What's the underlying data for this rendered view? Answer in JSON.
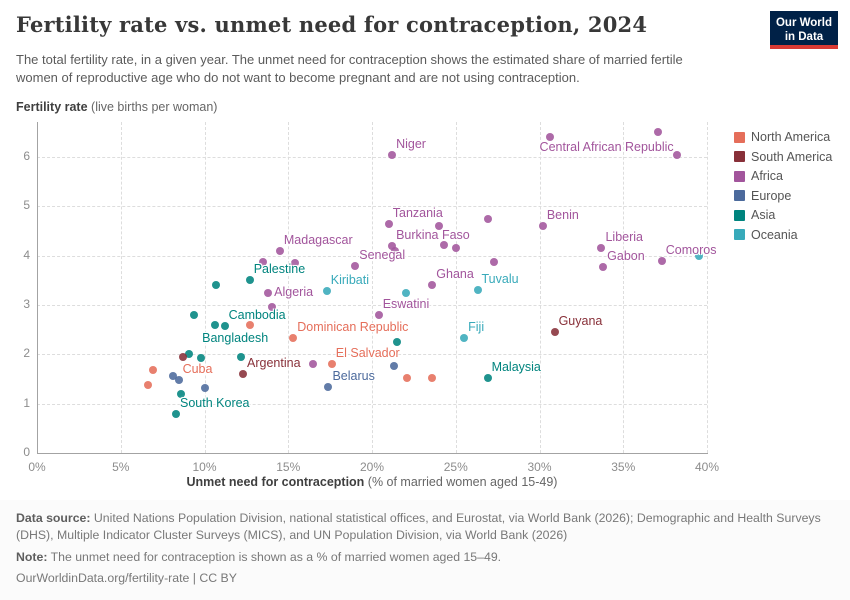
{
  "header": {
    "title": "Fertility rate vs. unmet need for contraception, 2024",
    "subtitle": "The total fertility rate, in a given year. The unmet need for contraception shows the estimated share of married fertile women of reproductive age who do not want to become pregnant and are not using contraception.",
    "logo": {
      "line1": "Our World",
      "line2": "in Data",
      "bg": "#002147",
      "accent": "#d93a34"
    }
  },
  "chart_data": {
    "type": "scatter",
    "title": "Fertility rate vs. unmet need for contraception, 2024",
    "x_axis": {
      "title_bold": "Unmet need for contraception",
      "title_rest": " (% of married women aged 15-49)",
      "ticks": [
        "0%",
        "5%",
        "10%",
        "15%",
        "20%",
        "25%",
        "30%",
        "35%",
        "40%"
      ],
      "range": [
        0,
        40
      ],
      "grid": true
    },
    "y_axis": {
      "title_bold": "Fertility rate",
      "title_rest": " (live births per woman)",
      "ticks": [
        0,
        1,
        2,
        3,
        4,
        5,
        6
      ],
      "range": [
        0,
        6.7
      ],
      "grid": true
    },
    "legend_position": "right",
    "legend": [
      {
        "label": "North America",
        "color": "#e56e5a"
      },
      {
        "label": "South America",
        "color": "#883039"
      },
      {
        "label": "Africa",
        "color": "#a2559c"
      },
      {
        "label": "Europe",
        "color": "#4c6a9c"
      },
      {
        "label": "Asia",
        "color": "#00847e"
      },
      {
        "label": "Oceania",
        "color": "#38aaba"
      }
    ],
    "series": [
      {
        "name": "Africa",
        "color": "#a2559c",
        "points": [
          {
            "x": 21.2,
            "y": 6.05,
            "label": "Niger",
            "labelPos": "ar"
          },
          {
            "x": 30.6,
            "y": 6.4,
            "label": "Central African Republic",
            "labelPos": "br"
          },
          {
            "x": 37.1,
            "y": 6.5
          },
          {
            "x": 38.2,
            "y": 6.05
          },
          {
            "x": 21.0,
            "y": 4.65,
            "label": "Tanzania",
            "labelPos": "ar"
          },
          {
            "x": 24.0,
            "y": 4.6
          },
          {
            "x": 26.9,
            "y": 4.75
          },
          {
            "x": 30.2,
            "y": 4.6,
            "label": "Benin",
            "labelPos": "ar"
          },
          {
            "x": 21.2,
            "y": 4.2,
            "label": "Burkina Faso",
            "labelPos": "ar"
          },
          {
            "x": 21.4,
            "y": 4.1
          },
          {
            "x": 24.3,
            "y": 4.22
          },
          {
            "x": 25.0,
            "y": 4.15
          },
          {
            "x": 33.7,
            "y": 4.15,
            "label": "Liberia",
            "labelPos": "ar"
          },
          {
            "x": 33.8,
            "y": 3.77,
            "label": "Gabon",
            "labelPos": "ar"
          },
          {
            "x": 37.3,
            "y": 3.9,
            "label": "Comoros",
            "labelPos": "ar"
          },
          {
            "x": 14.5,
            "y": 4.1,
            "label": "Madagascar",
            "labelPos": "ar"
          },
          {
            "x": 13.5,
            "y": 3.87
          },
          {
            "x": 15.4,
            "y": 3.85
          },
          {
            "x": 19.0,
            "y": 3.8,
            "label": "Senegal",
            "labelPos": "ar"
          },
          {
            "x": 27.3,
            "y": 3.87
          },
          {
            "x": 23.6,
            "y": 3.4,
            "label": "Ghana",
            "labelPos": "ar"
          },
          {
            "x": 13.8,
            "y": 3.25,
            "label": "Algeria",
            "labelPos": "r"
          },
          {
            "x": 14.0,
            "y": 2.95
          },
          {
            "x": 20.4,
            "y": 2.8,
            "label": "Eswatini",
            "labelPos": "ar"
          },
          {
            "x": 16.5,
            "y": 1.81
          }
        ]
      },
      {
        "name": "Asia",
        "color": "#00847e",
        "points": [
          {
            "x": 12.7,
            "y": 3.5,
            "label": "Palestine",
            "labelPos": "ar"
          },
          {
            "x": 10.7,
            "y": 3.4
          },
          {
            "x": 9.4,
            "y": 2.8
          },
          {
            "x": 11.2,
            "y": 2.58,
            "label": "Cambodia",
            "labelPos": "ar"
          },
          {
            "x": 10.6,
            "y": 2.6
          },
          {
            "x": 9.8,
            "y": 1.93,
            "label": "Bangladesh",
            "labelPos": "aa"
          },
          {
            "x": 9.1,
            "y": 2.0
          },
          {
            "x": 12.2,
            "y": 1.95
          },
          {
            "x": 8.6,
            "y": 1.2
          },
          {
            "x": 8.3,
            "y": 0.8,
            "label": "South Korea",
            "labelPos": "ar"
          },
          {
            "x": 21.5,
            "y": 2.25
          },
          {
            "x": 26.9,
            "y": 1.52,
            "label": "Malaysia",
            "labelPos": "ar"
          }
        ]
      },
      {
        "name": "North America",
        "color": "#e56e5a",
        "points": [
          {
            "x": 12.7,
            "y": 2.6
          },
          {
            "x": 15.3,
            "y": 2.33,
            "label": "Dominican Republic",
            "labelPos": "ar"
          },
          {
            "x": 6.9,
            "y": 1.68,
            "label": "Cuba",
            "labelPos": "rr"
          },
          {
            "x": 6.6,
            "y": 1.38
          },
          {
            "x": 17.6,
            "y": 1.81,
            "label": "El Salvador",
            "labelPos": "ar"
          },
          {
            "x": 22.1,
            "y": 1.52
          },
          {
            "x": 23.6,
            "y": 1.52
          }
        ]
      },
      {
        "name": "South America",
        "color": "#883039",
        "points": [
          {
            "x": 8.7,
            "y": 1.95
          },
          {
            "x": 12.3,
            "y": 1.6,
            "label": "Argentina",
            "labelPos": "ar"
          },
          {
            "x": 30.9,
            "y": 2.45,
            "label": "Guyana",
            "labelPos": "ar"
          }
        ]
      },
      {
        "name": "Europe",
        "color": "#4c6a9c",
        "points": [
          {
            "x": 8.1,
            "y": 1.56
          },
          {
            "x": 8.5,
            "y": 1.48
          },
          {
            "x": 10.0,
            "y": 1.32
          },
          {
            "x": 17.4,
            "y": 1.34,
            "label": "Belarus",
            "labelPos": "ar"
          },
          {
            "x": 21.3,
            "y": 1.76
          }
        ]
      },
      {
        "name": "Oceania",
        "color": "#38aaba",
        "points": [
          {
            "x": 17.3,
            "y": 3.28,
            "label": "Kiribati",
            "labelPos": "ar"
          },
          {
            "x": 22.0,
            "y": 3.25
          },
          {
            "x": 26.3,
            "y": 3.3,
            "label": "Tuvalu",
            "labelPos": "ar"
          },
          {
            "x": 25.5,
            "y": 2.33,
            "label": "Fiji",
            "labelPos": "ar"
          },
          {
            "x": 39.5,
            "y": 4.0
          }
        ]
      }
    ]
  },
  "footer": {
    "source_bold": "Data source:",
    "source_text": " United Nations Population Division, national statistical offices, and Eurostat, via World Bank (2026); Demographic and Health Surveys (DHS), Multiple Indicator Cluster Surveys (MICS), and UN Population Division, via World Bank (2026)",
    "note_bold": "Note:",
    "note_text": " The unmet need for contraception is shown as a % of married women aged 15–49.",
    "url": "OurWorldinData.org/fertility-rate | CC BY"
  }
}
